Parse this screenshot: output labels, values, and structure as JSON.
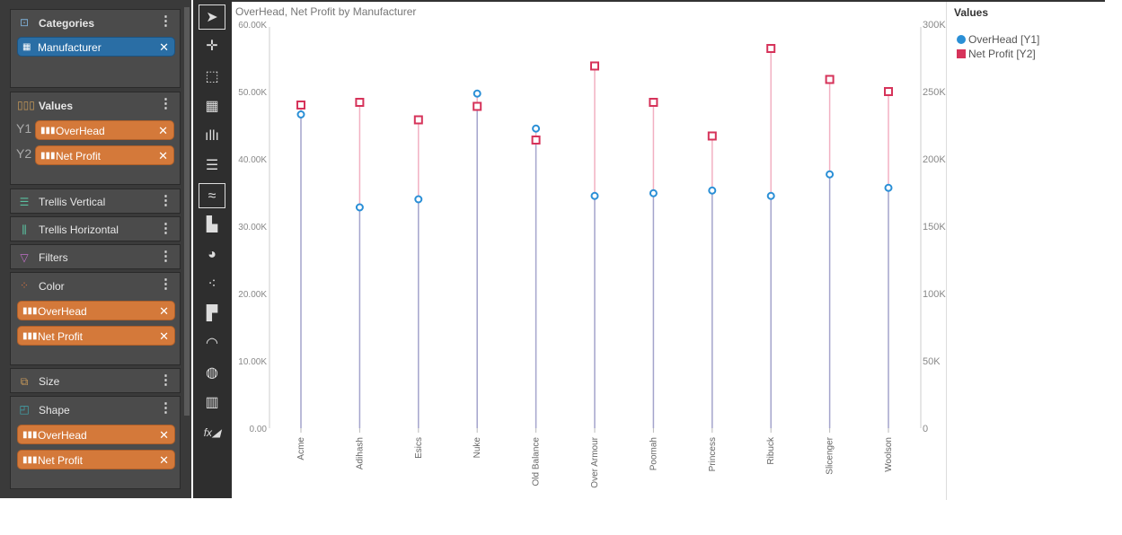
{
  "sidebar": {
    "categories": {
      "title": "Categories",
      "pills": [
        {
          "label": "Manufacturer"
        }
      ]
    },
    "values": {
      "title": "Values",
      "y1": "Y1",
      "y2": "Y2",
      "pills": [
        {
          "label": "OverHead"
        },
        {
          "label": "Net Profit"
        }
      ]
    },
    "trellis_vertical": {
      "title": "Trellis Vertical"
    },
    "trellis_horizontal": {
      "title": "Trellis Horizontal"
    },
    "filters": {
      "title": "Filters"
    },
    "color": {
      "title": "Color",
      "pills": [
        {
          "label": "OverHead"
        },
        {
          "label": "Net Profit"
        }
      ]
    },
    "size": {
      "title": "Size"
    },
    "shape": {
      "title": "Shape",
      "pills": [
        {
          "label": "OverHead"
        },
        {
          "label": "Net Profit"
        }
      ]
    }
  },
  "toolbar": {
    "icons": [
      "pointer-icon",
      "add-point-icon",
      "select-region-icon",
      "grid-icon",
      "column-chart-icon",
      "bar-chart-icon",
      "line-chart-icon",
      "area-chart-icon",
      "pie-chart-icon",
      "scatter-icon",
      "treemap-icon",
      "gauge-icon",
      "globe-icon",
      "pivot-icon",
      "formula-icon"
    ],
    "selected": "line-chart-icon"
  },
  "colors": {
    "overhead": "#2a8fd6",
    "net_profit": "#d6335a",
    "pill_orange": "#d4793a",
    "pill_blue": "#2a6ea5"
  },
  "chart_data": {
    "type": "scatter",
    "title": "OverHead, Net Profit by Manufacturer",
    "categories": [
      "Acme",
      "Adihash",
      "Esics",
      "Nuke",
      "Old Balance",
      "Over Armour",
      "Poomah",
      "Princess",
      "Ribuck",
      "Slicenger",
      "Woolson"
    ],
    "series": [
      {
        "name": "OverHead [Y1]",
        "axis": "left",
        "marker": "circle",
        "values": [
          46600,
          32800,
          34000,
          49700,
          44500,
          34500,
          34900,
          35300,
          34500,
          37700,
          35700
        ]
      },
      {
        "name": "Net Profit [Y2]",
        "axis": "right",
        "marker": "square",
        "values": [
          240000,
          242000,
          229000,
          239000,
          214000,
          269000,
          242000,
          217000,
          282000,
          259000,
          250000
        ]
      }
    ],
    "y_left": {
      "ticks": [
        "0.00",
        "10.00K",
        "20.00K",
        "30.00K",
        "40.00K",
        "50.00K",
        "60.00K"
      ],
      "range": [
        0,
        60000
      ]
    },
    "y_right": {
      "ticks": [
        "0",
        "50K",
        "100K",
        "150K",
        "200K",
        "250K",
        "300K"
      ],
      "range": [
        0,
        300000
      ]
    },
    "legend": {
      "title": "Values",
      "position": "right"
    },
    "grid": false
  }
}
